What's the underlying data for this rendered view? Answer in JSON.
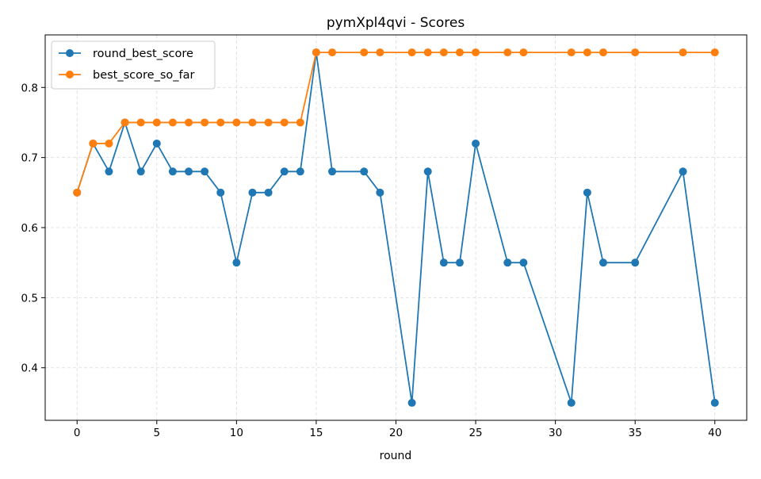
{
  "chart_data": {
    "type": "line",
    "title": "pymXpl4qvi - Scores",
    "xlabel": "round",
    "ylabel": "",
    "xlim": [
      -2,
      42
    ],
    "ylim": [
      0.325,
      0.875
    ],
    "xticks": [
      0,
      5,
      10,
      15,
      20,
      25,
      30,
      35,
      40
    ],
    "yticks": [
      0.4,
      0.5,
      0.6,
      0.7,
      0.8
    ],
    "xtick_labels": [
      "0",
      "5",
      "10",
      "15",
      "20",
      "25",
      "30",
      "35",
      "40"
    ],
    "ytick_labels": [
      "0.4",
      "0.5",
      "0.6",
      "0.7",
      "0.8"
    ],
    "grid": true,
    "legend_position": "top-left",
    "series": [
      {
        "name": "round_best_score",
        "color": "#1f77b4",
        "x": [
          0,
          1,
          2,
          3,
          4,
          5,
          6,
          7,
          8,
          9,
          10,
          11,
          12,
          13,
          14,
          15,
          16,
          18,
          19,
          21,
          22,
          23,
          24,
          25,
          27,
          28,
          31,
          32,
          33,
          35,
          38,
          40
        ],
        "y": [
          0.65,
          0.72,
          0.68,
          0.75,
          0.68,
          0.72,
          0.68,
          0.68,
          0.68,
          0.65,
          0.55,
          0.65,
          0.65,
          0.68,
          0.68,
          0.85,
          0.68,
          0.68,
          0.65,
          0.35,
          0.68,
          0.55,
          0.55,
          0.72,
          0.55,
          0.55,
          0.35,
          0.65,
          0.55,
          0.55,
          0.68,
          0.35
        ]
      },
      {
        "name": "best_score_so_far",
        "color": "#ff7f0e",
        "x": [
          0,
          1,
          2,
          3,
          4,
          5,
          6,
          7,
          8,
          9,
          10,
          11,
          12,
          13,
          14,
          15,
          16,
          18,
          19,
          21,
          22,
          23,
          24,
          25,
          27,
          28,
          31,
          32,
          33,
          35,
          38,
          40
        ],
        "y": [
          0.65,
          0.72,
          0.72,
          0.75,
          0.75,
          0.75,
          0.75,
          0.75,
          0.75,
          0.75,
          0.75,
          0.75,
          0.75,
          0.75,
          0.75,
          0.85,
          0.85,
          0.85,
          0.85,
          0.85,
          0.85,
          0.85,
          0.85,
          0.85,
          0.85,
          0.85,
          0.85,
          0.85,
          0.85,
          0.85,
          0.85,
          0.85
        ]
      }
    ]
  }
}
